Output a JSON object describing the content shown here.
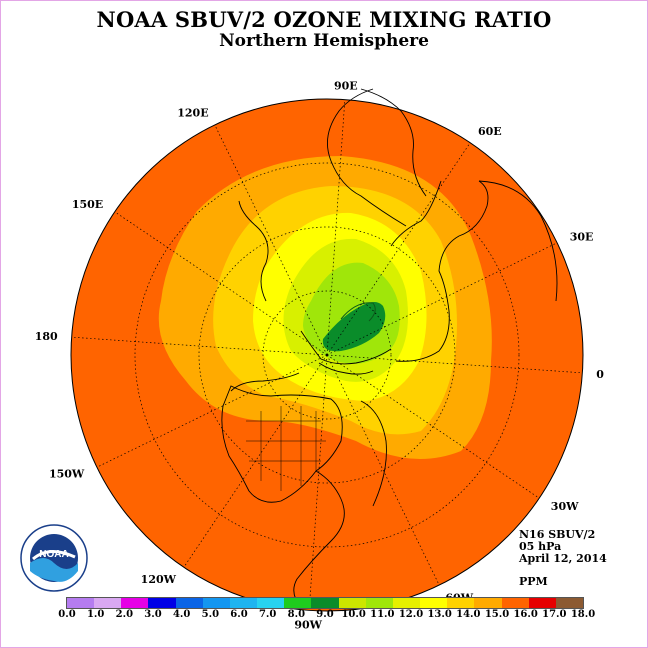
{
  "title": "NOAA SBUV/2 OZONE MIXING RATIO",
  "subtitle": "Northern Hemisphere",
  "longitude_labels": [
    {
      "name": "lon-90e",
      "text": "90E",
      "lon": 90
    },
    {
      "name": "lon-60e",
      "text": "60E",
      "lon": 60
    },
    {
      "name": "lon-30e",
      "text": "30E",
      "lon": 30
    },
    {
      "name": "lon-0",
      "text": "0",
      "lon": 0
    },
    {
      "name": "lon-30w",
      "text": "30W",
      "lon": -30
    },
    {
      "name": "lon-60w",
      "text": "60W",
      "lon": -60
    },
    {
      "name": "lon-90w",
      "text": "90W",
      "lon": -90
    },
    {
      "name": "lon-120w",
      "text": "120W",
      "lon": -120
    },
    {
      "name": "lon-150w",
      "text": "150W",
      "lon": -150
    },
    {
      "name": "lon-180",
      "text": "180",
      "lon": 180
    },
    {
      "name": "lon-150e",
      "text": "150E",
      "lon": 150
    },
    {
      "name": "lon-120e",
      "text": "120E",
      "lon": 120
    }
  ],
  "info": {
    "instrument": "N16 SBUV/2",
    "level": "05 hPa",
    "date": "April 12, 2014",
    "units": "PPM"
  },
  "colorbar": {
    "ticks": [
      "0.0",
      "1.0",
      "2.0",
      "3.0",
      "4.0",
      "5.0",
      "6.0",
      "7.0",
      "8.0",
      "9.0",
      "10.0",
      "11.0",
      "12.0",
      "13.0",
      "14.0",
      "15.0",
      "16.0",
      "17.0",
      "18.0"
    ],
    "colors": [
      "#b57cf0",
      "#d9a8f2",
      "#e600e6",
      "#0000e6",
      "#0a64e6",
      "#1496f0",
      "#1eb4f0",
      "#28d2f0",
      "#1ecc1e",
      "#0a8c2a",
      "#cce600",
      "#a0e60a",
      "#e6f000",
      "#ffff00",
      "#ffd200",
      "#ffaa00",
      "#ff6400",
      "#e60000",
      "#8c5a32"
    ]
  },
  "logo": {
    "text": "NOAA"
  }
}
